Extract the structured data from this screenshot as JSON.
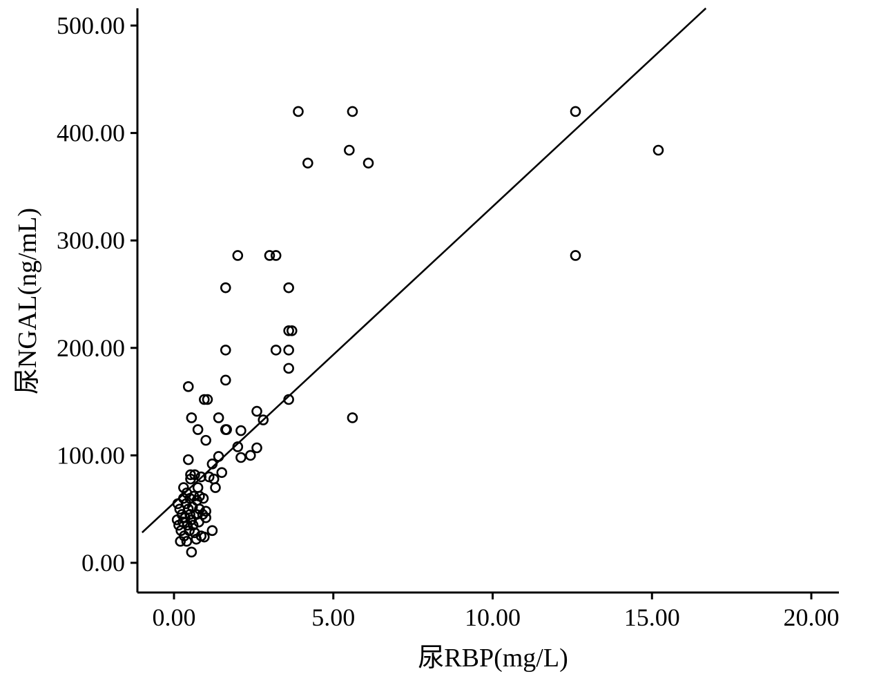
{
  "chart_data": {
    "type": "scatter",
    "title": "",
    "xlabel": "尿RBP(mg/L)",
    "ylabel": "尿NGAL(ng/mL)",
    "xlim": [
      -1.0,
      21.0
    ],
    "ylim": [
      -28,
      520
    ],
    "x_ticks": [
      0,
      5,
      10,
      15,
      20
    ],
    "x_tick_labels": [
      "0.00",
      "5.00",
      "10.00",
      "15.00",
      "20.00"
    ],
    "y_ticks": [
      0,
      100,
      200,
      300,
      400,
      500
    ],
    "y_tick_labels": [
      "0.00",
      "100.00",
      "200.00",
      "300.00",
      "400.00",
      "500.00"
    ],
    "grid": false,
    "fit_line": {
      "type": "linear",
      "intercept": 56,
      "slope": 27.8
    },
    "points": [
      [
        0.1,
        40
      ],
      [
        0.12,
        55
      ],
      [
        0.15,
        35
      ],
      [
        0.18,
        50
      ],
      [
        0.2,
        20
      ],
      [
        0.22,
        30
      ],
      [
        0.25,
        45
      ],
      [
        0.28,
        38
      ],
      [
        0.3,
        60
      ],
      [
        0.3,
        70
      ],
      [
        0.32,
        25
      ],
      [
        0.35,
        42
      ],
      [
        0.38,
        55
      ],
      [
        0.4,
        65
      ],
      [
        0.4,
        20
      ],
      [
        0.42,
        35
      ],
      [
        0.45,
        50
      ],
      [
        0.45,
        96
      ],
      [
        0.45,
        164
      ],
      [
        0.48,
        30
      ],
      [
        0.5,
        45
      ],
      [
        0.5,
        60
      ],
      [
        0.52,
        82
      ],
      [
        0.52,
        78
      ],
      [
        0.55,
        40
      ],
      [
        0.55,
        10
      ],
      [
        0.55,
        135
      ],
      [
        0.58,
        52
      ],
      [
        0.6,
        35
      ],
      [
        0.62,
        62
      ],
      [
        0.65,
        28
      ],
      [
        0.65,
        82
      ],
      [
        0.7,
        45
      ],
      [
        0.7,
        22
      ],
      [
        0.72,
        58
      ],
      [
        0.75,
        70
      ],
      [
        0.75,
        124
      ],
      [
        0.78,
        38
      ],
      [
        0.8,
        50
      ],
      [
        0.8,
        62
      ],
      [
        0.85,
        25
      ],
      [
        0.85,
        80
      ],
      [
        0.9,
        45
      ],
      [
        0.92,
        60
      ],
      [
        0.95,
        152
      ],
      [
        0.95,
        24
      ],
      [
        1.0,
        48
      ],
      [
        1.0,
        42
      ],
      [
        1.0,
        114
      ],
      [
        1.05,
        152
      ],
      [
        1.1,
        80
      ],
      [
        1.2,
        30
      ],
      [
        1.2,
        92
      ],
      [
        1.25,
        78
      ],
      [
        1.3,
        70
      ],
      [
        1.4,
        135
      ],
      [
        1.4,
        99
      ],
      [
        1.5,
        84
      ],
      [
        1.62,
        256
      ],
      [
        1.62,
        124
      ],
      [
        1.62,
        198
      ],
      [
        1.62,
        170
      ],
      [
        1.65,
        124
      ],
      [
        2.0,
        286
      ],
      [
        2.0,
        108
      ],
      [
        2.1,
        98
      ],
      [
        2.1,
        123
      ],
      [
        2.4,
        100
      ],
      [
        2.6,
        107
      ],
      [
        2.6,
        141
      ],
      [
        2.8,
        133
      ],
      [
        3.0,
        286
      ],
      [
        3.2,
        286
      ],
      [
        3.2,
        198
      ],
      [
        3.6,
        256
      ],
      [
        3.6,
        216
      ],
      [
        3.6,
        198
      ],
      [
        3.6,
        181
      ],
      [
        3.6,
        152
      ],
      [
        3.7,
        216
      ],
      [
        3.9,
        420
      ],
      [
        4.2,
        372
      ],
      [
        5.5,
        384
      ],
      [
        5.6,
        420
      ],
      [
        5.6,
        135
      ],
      [
        6.1,
        372
      ],
      [
        12.6,
        420
      ],
      [
        12.6,
        286
      ],
      [
        15.2,
        384
      ]
    ]
  }
}
